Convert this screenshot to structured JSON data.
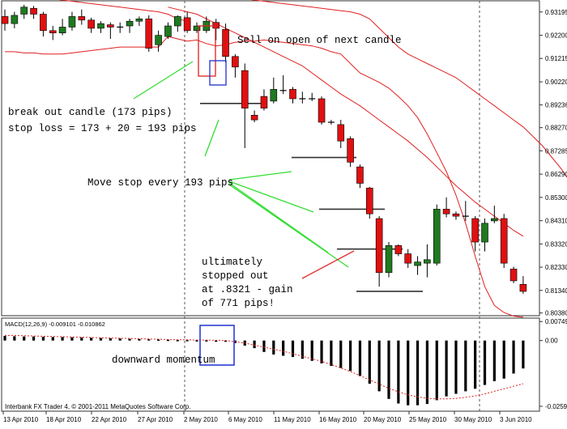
{
  "chart_data": {
    "type": "candlestick",
    "price_axis": {
      "ticks": [
        "0.93195",
        "0.92200",
        "0.91215",
        "0.90220",
        "0.89236",
        "0.88270",
        "0.87285",
        "0.86290",
        "0.85300",
        "0.84310",
        "0.83320",
        "0.82330",
        "0.81340",
        "0.80380"
      ],
      "ylim": [
        0.803,
        0.936
      ]
    },
    "date_axis": {
      "ticks": [
        "13 Apr 2010",
        "18 Apr 2010",
        "22 Apr 2010",
        "27 Apr 2010",
        "2 May 2010",
        "6 May 2010",
        "11 May 2010",
        "16 May 2010",
        "20 May 2010",
        "25 May 2010",
        "30 May 2010",
        "3 Jun 2010"
      ]
    },
    "candles": [
      [
        0.93,
        0.927,
        0.933,
        0.924
      ],
      [
        0.927,
        0.9305,
        0.932,
        0.925
      ],
      [
        0.931,
        0.934,
        0.935,
        0.929
      ],
      [
        0.9335,
        0.931,
        0.9345,
        0.929
      ],
      [
        0.931,
        0.924,
        0.932,
        0.9215
      ],
      [
        0.924,
        0.923,
        0.926,
        0.92
      ],
      [
        0.923,
        0.9255,
        0.929,
        0.922
      ],
      [
        0.9255,
        0.93,
        0.932,
        0.924
      ],
      [
        0.93,
        0.9285,
        0.933,
        0.9265
      ],
      [
        0.9285,
        0.925,
        0.9295,
        0.923
      ],
      [
        0.925,
        0.927,
        0.928,
        0.923
      ],
      [
        0.9265,
        0.9255,
        0.9275,
        0.9205
      ],
      [
        0.9255,
        0.9255,
        0.9275,
        0.923
      ],
      [
        0.926,
        0.928,
        0.929,
        0.923
      ],
      [
        0.928,
        0.929,
        0.93,
        0.926
      ],
      [
        0.929,
        0.9165,
        0.9305,
        0.915
      ],
      [
        0.918,
        0.922,
        0.924,
        0.915
      ],
      [
        0.9215,
        0.926,
        0.9275,
        0.9205
      ],
      [
        0.926,
        0.93,
        0.9305,
        0.9235
      ],
      [
        0.9295,
        0.924,
        0.932,
        0.923
      ],
      [
        0.924,
        0.926,
        0.9275,
        0.923
      ],
      [
        0.924,
        0.928,
        0.93,
        0.923
      ],
      [
        0.9275,
        0.925,
        0.929,
        0.92
      ],
      [
        0.9245,
        0.913,
        0.927,
        0.9105
      ],
      [
        0.913,
        0.9085,
        0.914,
        0.904
      ],
      [
        0.907,
        0.891,
        0.91,
        0.874
      ],
      [
        0.888,
        0.886,
        0.89,
        0.885
      ],
      [
        0.896,
        0.891,
        0.899,
        0.89
      ],
      [
        0.894,
        0.899,
        0.904,
        0.893
      ],
      [
        0.8985,
        0.8985,
        0.905,
        0.897
      ],
      [
        0.899,
        0.895,
        0.9,
        0.893
      ],
      [
        0.895,
        0.895,
        0.898,
        0.893
      ],
      [
        0.895,
        0.895,
        0.8975,
        0.894
      ],
      [
        0.895,
        0.885,
        0.896,
        0.884
      ],
      [
        0.885,
        0.885,
        0.886,
        0.884
      ],
      [
        0.884,
        0.877,
        0.886,
        0.874
      ],
      [
        0.878,
        0.868,
        0.879,
        0.866
      ],
      [
        0.866,
        0.859,
        0.867,
        0.857
      ],
      [
        0.857,
        0.846,
        0.8575,
        0.844
      ],
      [
        0.844,
        0.821,
        0.845,
        0.815
      ],
      [
        0.821,
        0.8325,
        0.834,
        0.819
      ],
      [
        0.8325,
        0.829,
        0.833,
        0.828
      ],
      [
        0.829,
        0.825,
        0.831,
        0.823
      ],
      [
        0.824,
        0.8255,
        0.828,
        0.82
      ],
      [
        0.825,
        0.8265,
        0.833,
        0.819
      ],
      [
        0.825,
        0.848,
        0.85,
        0.824
      ],
      [
        0.848,
        0.846,
        0.853,
        0.8445
      ],
      [
        0.846,
        0.845,
        0.847,
        0.8435
      ],
      [
        0.845,
        0.845,
        0.8515,
        0.843
      ],
      [
        0.844,
        0.834,
        0.845,
        0.83
      ],
      [
        0.834,
        0.842,
        0.844,
        0.83
      ],
      [
        0.843,
        0.844,
        0.8495,
        0.842
      ],
      [
        0.844,
        0.825,
        0.846,
        0.823
      ],
      [
        0.8225,
        0.8175,
        0.8235,
        0.8165
      ],
      [
        0.816,
        0.813,
        0.8195,
        0.812
      ]
    ],
    "upper_band": [
      0.94,
      0.94,
      0.9395,
      0.939,
      0.9385,
      0.9375,
      0.937,
      0.9365,
      0.936,
      0.9355,
      0.935,
      0.9345,
      0.934,
      0.9335,
      0.933,
      0.9325,
      0.932,
      0.931,
      0.929,
      0.925,
      0.921,
      0.917,
      0.914,
      0.912,
      0.91,
      0.908,
      0.906,
      0.904,
      0.901,
      0.898,
      0.895,
      0.892,
      0.889,
      0.886,
      0.883,
      0.879,
      0.875,
      0.87,
      0.865,
      0.859,
      0.854,
      0.85,
      0.846,
      0.843,
      0.841,
      0.839,
      0.8375,
      0.836
    ],
    "upper_band_start": 20,
    "upper_band_head": [
      0.94,
      0.94,
      0.9395,
      0.939,
      0.9385,
      0.9375,
      0.937,
      0.9365,
      0.936,
      0.9355,
      0.935,
      0.9345,
      0.934,
      0.9335,
      0.933,
      0.9325,
      0.932,
      0.931,
      0.929,
      0.928
    ],
    "upper_band2": [
      0.934,
      0.933,
      0.932,
      0.931,
      0.929,
      0.927,
      0.925,
      0.923,
      0.921,
      0.919,
      0.917,
      0.915,
      0.913,
      0.911,
      0.909,
      0.906,
      0.903,
      0.9,
      0.897,
      0.8945,
      0.892,
      0.889,
      0.886,
      0.883,
      0.88,
      0.877,
      0.8735,
      0.87,
      0.866,
      0.862,
      0.858,
      0.8545,
      0.851,
      0.848,
      0.845,
      0.842,
      0.839,
      0.8365
    ],
    "upper_band2_start": 17,
    "lower_band": [
      0.9215,
      0.9205,
      0.9195,
      0.92,
      0.9185,
      0.9175,
      0.918,
      0.919,
      0.9195,
      0.9195,
      0.92,
      0.9195,
      0.919,
      0.9185,
      0.918,
      0.9175,
      0.9165,
      0.915,
      0.914,
      0.91,
      0.906,
      0.904,
      0.902,
      0.8995,
      0.896,
      0.892,
      0.887,
      0.88,
      0.872,
      0.864,
      0.854,
      0.842,
      0.828,
      0.815,
      0.807,
      0.804,
      0.8025,
      0.802
    ],
    "macd_label": "MACD(12,26,9) -0.009101 -0.010862",
    "macd_axis": {
      "ticks": [
        "0.00749",
        "0.00",
        "-0.02591"
      ],
      "ylim": [
        -0.0272,
        0.0082
      ]
    },
    "macd_hist": [
      0.0018,
      0.0017,
      0.0016,
      0.0016,
      0.0015,
      0.0014,
      0.0014,
      0.0013,
      0.0012,
      0.0011,
      0.001,
      0.0009,
      0.0008,
      0.0007,
      0.0006,
      0.0005,
      0.0004,
      0.0003,
      0.0002,
      0.0002,
      0.0001,
      0.0001,
      0.0,
      -0.0005,
      -0.001,
      -0.002,
      -0.003,
      -0.0045,
      -0.0055,
      -0.006,
      -0.0065,
      -0.0072,
      -0.008,
      -0.009,
      -0.01,
      -0.0108,
      -0.012,
      -0.014,
      -0.017,
      -0.02,
      -0.023,
      -0.0248,
      -0.0255,
      -0.0255,
      -0.025,
      -0.0235,
      -0.022,
      -0.021,
      -0.02,
      -0.019,
      -0.0175,
      -0.016,
      -0.015,
      -0.013,
      -0.011
    ],
    "macd_signal": [
      0.002,
      0.002,
      0.0019,
      0.0018,
      0.0017,
      0.0016,
      0.0015,
      0.0014,
      0.0013,
      0.0012,
      0.0011,
      0.001,
      0.0009,
      0.0008,
      0.0007,
      0.0006,
      0.0005,
      0.0004,
      0.0003,
      0.0003,
      0.0002,
      0.0002,
      0.0001,
      0.0,
      -0.0005,
      -0.001,
      -0.0018,
      -0.0026,
      -0.0034,
      -0.0042,
      -0.0052,
      -0.0062,
      -0.0072,
      -0.0082,
      -0.0095,
      -0.0108,
      -0.0122,
      -0.0138,
      -0.0155,
      -0.0172,
      -0.0188,
      -0.0202,
      -0.0214,
      -0.0222,
      -0.0228,
      -0.023,
      -0.023,
      -0.0228,
      -0.0224,
      -0.0218,
      -0.021,
      -0.02,
      -0.019,
      -0.018,
      -0.017
    ],
    "stop_levels": [
      0.893,
      0.87,
      0.848,
      0.831,
      0.813
    ],
    "annotations": {
      "sell": "Sell on open of next candle",
      "breakout_1": "break out candle (173 pips)",
      "breakout_2": "stop loss = 173 + 20 = 193 pips",
      "move_stop": "Move stop every 193 pips",
      "stopped_1": "ultimately",
      "stopped_2": "stopped out",
      "stopped_3": "at .8321 - gain",
      "stopped_4": "of 771 pips!",
      "momentum": "downward momentum"
    },
    "copyright": "Interbank FX Trader 4, © 2001-2011 MetaQuotes Software Corp.",
    "colors": {
      "bull": "#1f7a1f",
      "bear": "#e01010",
      "band": "#e02020",
      "signal": "#e02020",
      "arrow": "#33dd33",
      "stopped_arrow": "#e03030",
      "box_red": "#e02020",
      "box_blue": "#2030d0",
      "hist": "#000000",
      "grid": "#555555"
    }
  }
}
